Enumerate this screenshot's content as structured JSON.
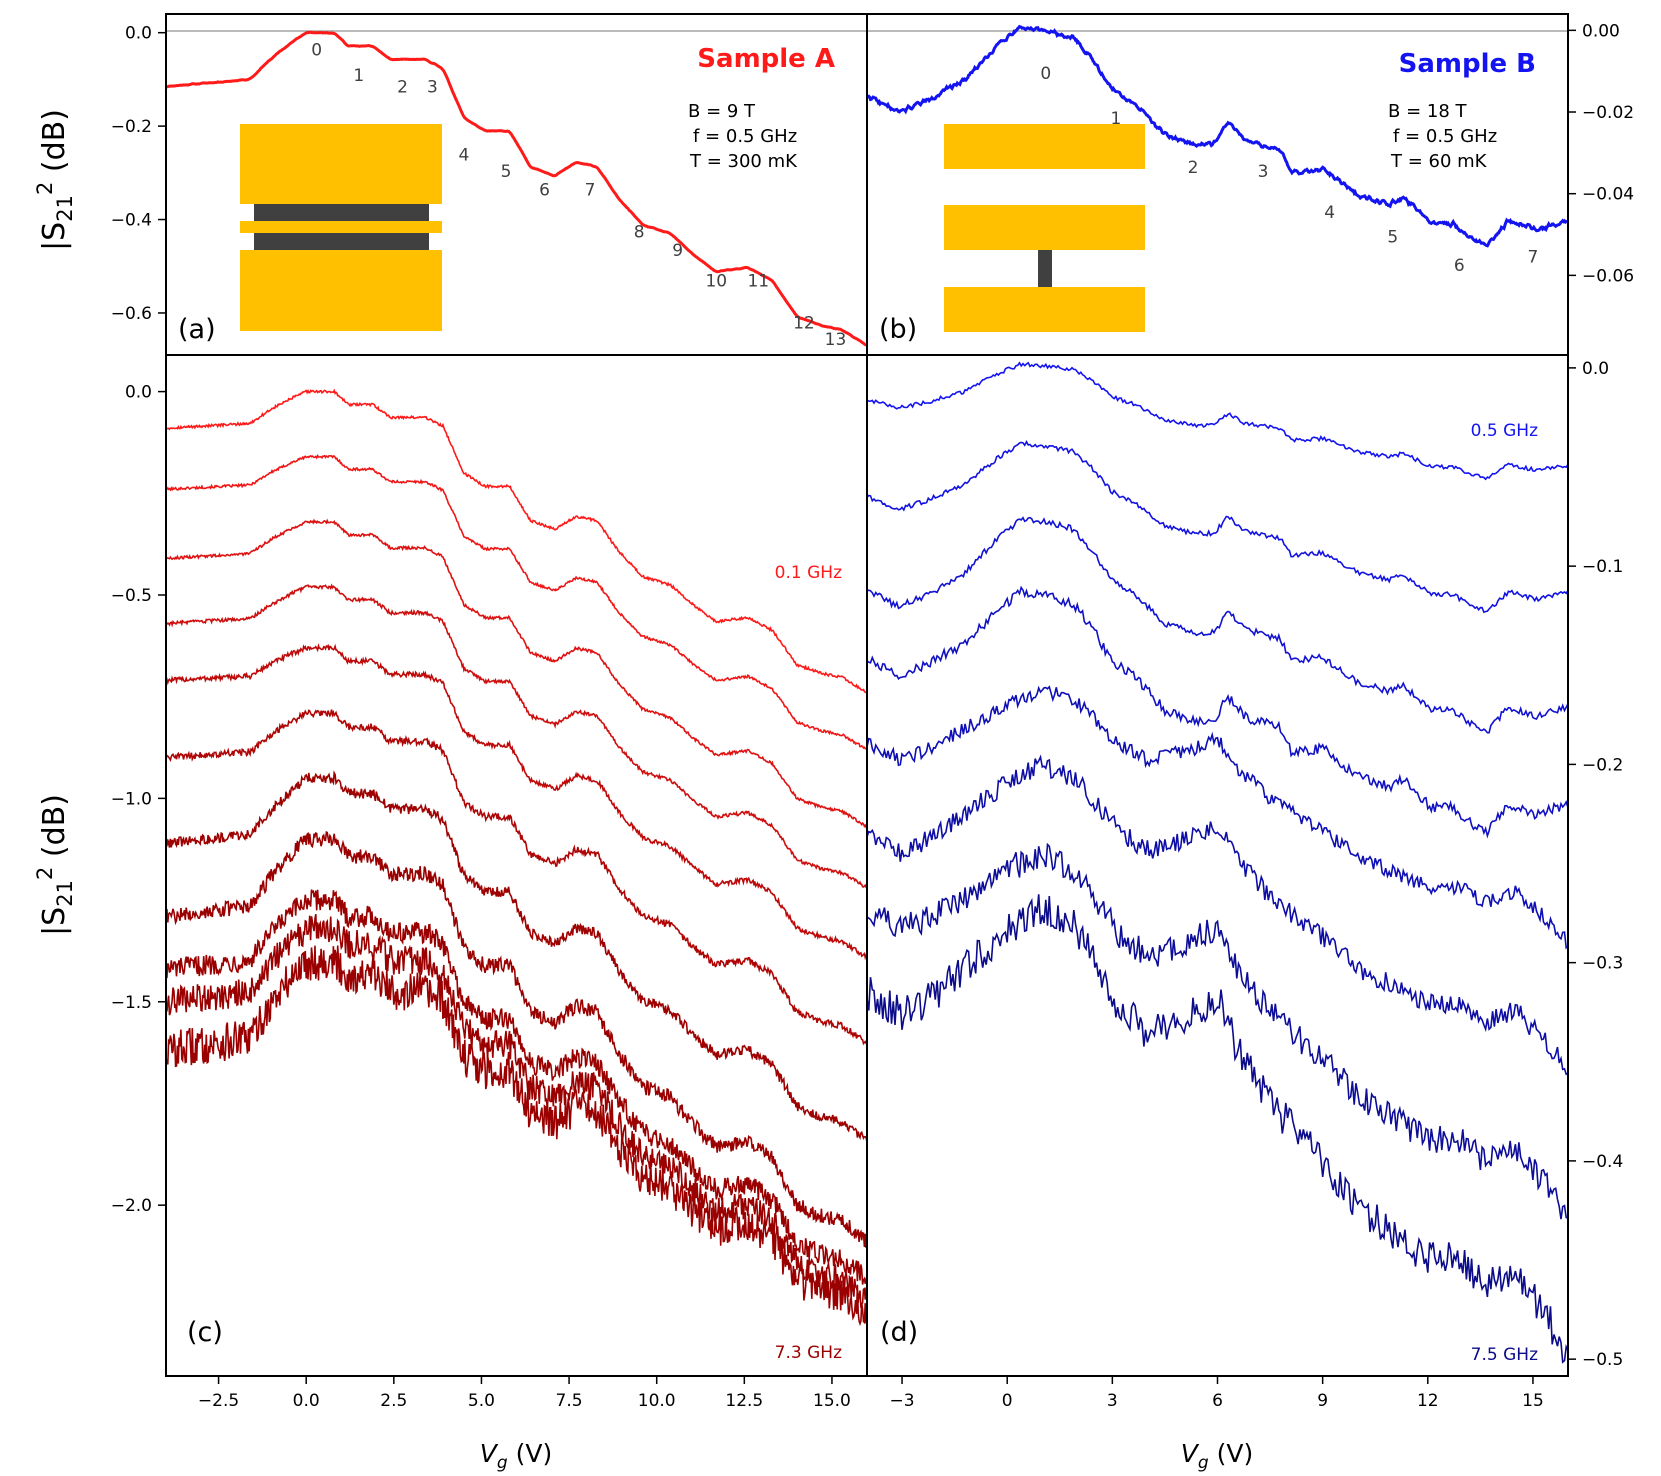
{
  "figure": {
    "ylabel_main": "|S",
    "ylabel_sub": "21",
    "ylabel_sup": "2",
    "ylabel_unit": " (dB)",
    "xlabel_italic": "V",
    "xlabel_sub": "g",
    "xlabel_unit": " (V)"
  },
  "colors": {
    "sampleA": "#ff1a1a",
    "sampleA_dark": "#9b0000",
    "sampleB": "#1414f0",
    "sampleB_dark": "#0c0c8a",
    "gold": "#ffc000",
    "gray_bar": "#404040"
  },
  "chart_data": [
    {
      "panel": "(a)",
      "type": "line",
      "title": "Sample A",
      "params": [
        "B =  9 T",
        "f =  0.5 GHz",
        "T = 300 mK"
      ],
      "xlim": [
        -4,
        16
      ],
      "ylim": [
        -0.69,
        0.04
      ],
      "yticks": [
        0.0,
        -0.2,
        -0.4,
        -0.6
      ],
      "ytick_labels": [
        "0.0",
        "−0.2",
        "−0.4",
        "−0.6"
      ],
      "plateau_labels": [
        {
          "text": "0",
          "x": 0.3,
          "y": -0.01
        },
        {
          "text": "1",
          "x": 1.5,
          "y": -0.065
        },
        {
          "text": "2",
          "x": 2.75,
          "y": -0.09
        },
        {
          "text": "3",
          "x": 3.6,
          "y": -0.09
        },
        {
          "text": "4",
          "x": 4.5,
          "y": -0.235
        },
        {
          "text": "5",
          "x": 5.7,
          "y": -0.27
        },
        {
          "text": "6",
          "x": 6.8,
          "y": -0.31
        },
        {
          "text": "7",
          "x": 8.1,
          "y": -0.31
        },
        {
          "text": "8",
          "x": 9.5,
          "y": -0.4
        },
        {
          "text": "9",
          "x": 10.6,
          "y": -0.44
        },
        {
          "text": "10",
          "x": 11.7,
          "y": -0.505
        },
        {
          "text": "11",
          "x": 12.9,
          "y": -0.505
        },
        {
          "text": "12",
          "x": 14.2,
          "y": -0.595
        },
        {
          "text": "13",
          "x": 15.1,
          "y": -0.63
        }
      ]
    },
    {
      "panel": "(b)",
      "type": "line",
      "title": "Sample B",
      "params": [
        "B =  18 T",
        "f =  0.5 GHz",
        "T = 60 mK"
      ],
      "xlim": [
        -4,
        16
      ],
      "ylim": [
        -0.0795,
        0.004
      ],
      "yticks": [
        0.0,
        -0.02,
        -0.04,
        -0.06
      ],
      "ytick_labels": [
        "0.00",
        "−0.02",
        "−0.04",
        "−0.06"
      ],
      "plateau_labels": [
        {
          "text": "0",
          "x": 1.1,
          "y": -0.0075
        },
        {
          "text": "1",
          "x": 3.1,
          "y": -0.0185
        },
        {
          "text": "2",
          "x": 5.3,
          "y": -0.0305
        },
        {
          "text": "3",
          "x": 7.3,
          "y": -0.0315
        },
        {
          "text": "4",
          "x": 9.2,
          "y": -0.0415
        },
        {
          "text": "5",
          "x": 11.0,
          "y": -0.0475
        },
        {
          "text": "6",
          "x": 12.9,
          "y": -0.0545
        },
        {
          "text": "7",
          "x": 15.0,
          "y": -0.0525
        }
      ]
    },
    {
      "panel": "(c)",
      "type": "line",
      "xlim": [
        -4,
        16
      ],
      "ylim": [
        -2.42,
        0.09
      ],
      "xticks": [
        -2.5,
        0.0,
        2.5,
        5.0,
        7.5,
        10.0,
        12.5,
        15.0
      ],
      "xtick_labels": [
        "−2.5",
        "0.0",
        "2.5",
        "5.0",
        "7.5",
        "10.0",
        "12.5",
        "15.0"
      ],
      "yticks": [
        0.0,
        -0.5,
        -1.0,
        -1.5,
        -2.0
      ],
      "ytick_labels": [
        "0.0",
        "−0.5",
        "−1.0",
        "−1.5",
        "−2.0"
      ],
      "freq_label_top": "0.1 GHz",
      "freq_label_bottom": "7.3 GHz",
      "series_count": 11,
      "series_start_values_at_vg_minus4": [
        -0.09,
        -0.24,
        -0.41,
        -0.57,
        -0.71,
        -0.9,
        -1.11,
        -1.29,
        -1.42,
        -1.5,
        -1.62
      ],
      "series_peak_values": [
        0.0,
        -0.16,
        -0.32,
        -0.48,
        -0.63,
        -0.79,
        -0.95,
        -1.1,
        -1.25,
        -1.32,
        -1.4
      ],
      "series_end_values_at_vg_16": [
        -0.74,
        -0.88,
        -1.07,
        -1.22,
        -1.39,
        -1.6,
        -1.84,
        -2.09,
        -2.18,
        -2.23,
        -2.26
      ]
    },
    {
      "panel": "(d)",
      "type": "line",
      "xlim": [
        -4,
        16
      ],
      "ylim": [
        -0.5085,
        0.0065
      ],
      "xticks": [
        -3,
        0,
        3,
        6,
        9,
        12,
        15
      ],
      "xtick_labels": [
        "−3",
        "0",
        "3",
        "6",
        "9",
        "12",
        "15"
      ],
      "yticks": [
        0.0,
        -0.1,
        -0.2,
        -0.3,
        -0.4,
        -0.5
      ],
      "ytick_labels": [
        "0.0",
        "−0.1",
        "−0.2",
        "−0.3",
        "−0.4",
        "−0.5"
      ],
      "freq_label_top": "0.5 GHz",
      "freq_label_bottom": "7.5 GHz",
      "series_count": 8,
      "series_start_values_at_vg_minus4": [
        -0.016,
        -0.065,
        -0.112,
        -0.147,
        -0.19,
        -0.235,
        -0.275,
        -0.315
      ],
      "series_peak_values": [
        0.002,
        -0.038,
        -0.076,
        -0.113,
        -0.162,
        -0.2,
        -0.245,
        -0.272
      ],
      "series_end_values_at_vg_16": [
        -0.049,
        -0.113,
        -0.171,
        -0.22,
        -0.29,
        -0.355,
        -0.43,
        -0.5
      ]
    }
  ],
  "panel_labels": {
    "a": "(a)",
    "b": "(b)",
    "c": "(c)",
    "d": "(d)"
  }
}
